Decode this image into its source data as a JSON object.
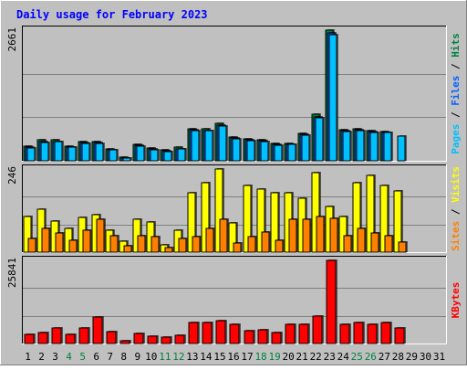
{
  "title": "Daily usage for February 2023",
  "colors": {
    "background": "#c0c0c0",
    "title": "#0000ff",
    "grid": "#808080",
    "pages": "#00c0ff",
    "files": "#0060ff",
    "hits": "#008040",
    "visits": "#ffff00",
    "sites": "#ff8000",
    "kbytes": "#ff0000",
    "weekday_label": "#000000",
    "weekend_label": "#008040"
  },
  "chart_data": [
    {
      "type": "bar",
      "name": "hits-files-pages",
      "ymax_label": "2661",
      "ylim": [
        0,
        2661
      ],
      "legend": [
        "Pages",
        "Files",
        "Hits"
      ],
      "categories": [
        "1",
        "2",
        "3",
        "4",
        "5",
        "6",
        "7",
        "8",
        "9",
        "10",
        "11",
        "12",
        "13",
        "14",
        "15",
        "16",
        "17",
        "18",
        "19",
        "20",
        "21",
        "22",
        "23",
        "24",
        "25",
        "26",
        "27",
        "28",
        "29",
        "30",
        "31"
      ],
      "series": [
        {
          "name": "Hits",
          "values": [
            290,
            420,
            420,
            300,
            390,
            390,
            250,
            70,
            330,
            260,
            220,
            270,
            660,
            650,
            760,
            480,
            440,
            430,
            350,
            360,
            560,
            950,
            2661,
            640,
            660,
            610,
            600,
            null,
            null,
            null,
            null
          ]
        },
        {
          "name": "Files",
          "values": [
            270,
            390,
            400,
            280,
            370,
            370,
            230,
            55,
            310,
            240,
            200,
            250,
            630,
            620,
            720,
            460,
            420,
            410,
            330,
            340,
            540,
            900,
            2600,
            610,
            630,
            590,
            580,
            null,
            null,
            null,
            null
          ]
        },
        {
          "name": "Pages",
          "values": [
            260,
            380,
            390,
            270,
            360,
            360,
            220,
            50,
            300,
            230,
            190,
            240,
            620,
            610,
            710,
            450,
            410,
            400,
            320,
            330,
            530,
            870,
            2560,
            600,
            620,
            580,
            570,
            510,
            null,
            null,
            null
          ]
        }
      ]
    },
    {
      "type": "bar",
      "name": "visits-sites",
      "ymax_label": "246",
      "ylim": [
        0,
        246
      ],
      "legend": [
        "Sites",
        "Visits"
      ],
      "categories": [
        "1",
        "2",
        "3",
        "4",
        "5",
        "6",
        "7",
        "8",
        "9",
        "10",
        "11",
        "12",
        "13",
        "14",
        "15",
        "16",
        "17",
        "18",
        "19",
        "20",
        "21",
        "22",
        "23",
        "24",
        "25",
        "26",
        "27",
        "28",
        "29",
        "30",
        "31"
      ],
      "series": [
        {
          "name": "Visits",
          "values": [
            106,
            126,
            93,
            70,
            103,
            110,
            66,
            33,
            96,
            90,
            22,
            66,
            176,
            206,
            246,
            86,
            196,
            186,
            176,
            176,
            160,
            236,
            136,
            106,
            206,
            226,
            196,
            180,
            null,
            null,
            null
          ]
        },
        {
          "name": "Sites",
          "values": [
            40,
            70,
            56,
            36,
            66,
            96,
            50,
            20,
            50,
            46,
            14,
            40,
            46,
            70,
            96,
            26,
            46,
            60,
            36,
            96,
            96,
            106,
            100,
            50,
            70,
            56,
            50,
            30,
            null,
            null,
            null
          ]
        }
      ]
    },
    {
      "type": "bar",
      "name": "kbytes",
      "ymax_label": "25841",
      "ylim": [
        0,
        25841
      ],
      "legend": [
        "KBytes"
      ],
      "categories": [
        "1",
        "2",
        "3",
        "4",
        "5",
        "6",
        "7",
        "8",
        "9",
        "10",
        "11",
        "12",
        "13",
        "14",
        "15",
        "16",
        "17",
        "18",
        "19",
        "20",
        "21",
        "22",
        "23",
        "24",
        "25",
        "26",
        "27",
        "28",
        "29",
        "30",
        "31"
      ],
      "series": [
        {
          "name": "KBytes",
          "values": [
            2700,
            3400,
            4900,
            2700,
            4900,
            8100,
            3800,
            850,
            3200,
            2300,
            2000,
            2600,
            6400,
            6400,
            7200,
            5900,
            3900,
            4300,
            3300,
            6100,
            6100,
            8600,
            25841,
            6100,
            6400,
            5900,
            6600,
            4900,
            null,
            null,
            null
          ]
        }
      ]
    }
  ],
  "x_labels": [
    {
      "text": "1",
      "weekend": false
    },
    {
      "text": "2",
      "weekend": false
    },
    {
      "text": "3",
      "weekend": false
    },
    {
      "text": "4",
      "weekend": true
    },
    {
      "text": "5",
      "weekend": true
    },
    {
      "text": "6",
      "weekend": false
    },
    {
      "text": "7",
      "weekend": false
    },
    {
      "text": "8",
      "weekend": false
    },
    {
      "text": "9",
      "weekend": false
    },
    {
      "text": "10",
      "weekend": false
    },
    {
      "text": "11",
      "weekend": true
    },
    {
      "text": "12",
      "weekend": true
    },
    {
      "text": "13",
      "weekend": false
    },
    {
      "text": "14",
      "weekend": false
    },
    {
      "text": "15",
      "weekend": false
    },
    {
      "text": "16",
      "weekend": false
    },
    {
      "text": "17",
      "weekend": false
    },
    {
      "text": "18",
      "weekend": true
    },
    {
      "text": "19",
      "weekend": true
    },
    {
      "text": "20",
      "weekend": false
    },
    {
      "text": "21",
      "weekend": false
    },
    {
      "text": "22",
      "weekend": false
    },
    {
      "text": "23",
      "weekend": false
    },
    {
      "text": "24",
      "weekend": false
    },
    {
      "text": "25",
      "weekend": true
    },
    {
      "text": "26",
      "weekend": true
    },
    {
      "text": "27",
      "weekend": false
    },
    {
      "text": "28",
      "weekend": false
    },
    {
      "text": "29",
      "weekend": false
    },
    {
      "text": "30",
      "weekend": false
    },
    {
      "text": "31",
      "weekend": false
    }
  ],
  "right_labels": {
    "top": [
      {
        "text": "Pages",
        "color": "#00c0ff"
      },
      {
        "text": " / ",
        "color": "#000000"
      },
      {
        "text": "Files",
        "color": "#0060ff"
      },
      {
        "text": " / ",
        "color": "#000000"
      },
      {
        "text": "Hits",
        "color": "#008040"
      }
    ],
    "middle": [
      {
        "text": "Sites",
        "color": "#ff8000"
      },
      {
        "text": " / ",
        "color": "#000000"
      },
      {
        "text": "Visits",
        "color": "#ffff00"
      }
    ],
    "bottom": [
      {
        "text": "KBytes",
        "color": "#ff0000"
      }
    ]
  }
}
